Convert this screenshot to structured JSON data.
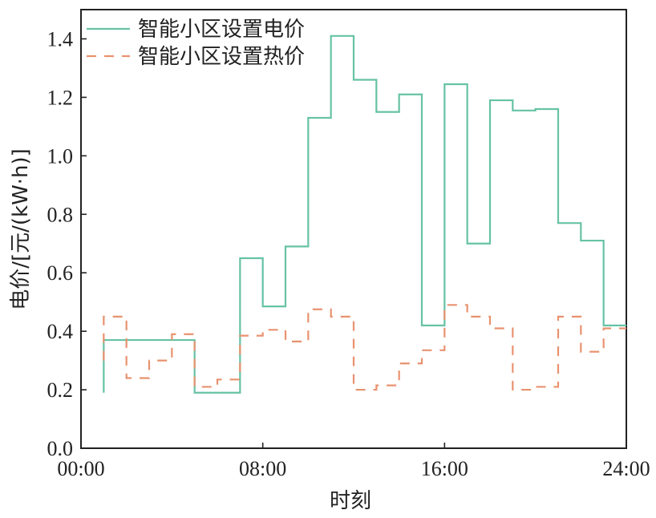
{
  "chart_data": {
    "type": "line",
    "step": "post",
    "title": "",
    "xlabel": "时刻",
    "ylabel": "电价/[元/(kW·h)]",
    "xlim": [
      0,
      24
    ],
    "ylim": [
      0,
      1.5
    ],
    "xticks": [
      {
        "value": 0,
        "label": "00:00"
      },
      {
        "value": 8,
        "label": "08:00"
      },
      {
        "value": 16,
        "label": "16:00"
      },
      {
        "value": 24,
        "label": "24:00"
      }
    ],
    "yticks": [
      {
        "value": 0,
        "label": "0.0"
      },
      {
        "value": 0.2,
        "label": "0.2"
      },
      {
        "value": 0.4,
        "label": "0.4"
      },
      {
        "value": 0.6,
        "label": "0.6"
      },
      {
        "value": 0.8,
        "label": "0.8"
      },
      {
        "value": 1.0,
        "label": "1.0"
      },
      {
        "value": 1.2,
        "label": "1.2"
      },
      {
        "value": 1.4,
        "label": "1.4"
      }
    ],
    "x": [
      1,
      2,
      3,
      4,
      5,
      6,
      7,
      8,
      9,
      10,
      11,
      12,
      13,
      14,
      15,
      16,
      17,
      18,
      19,
      20,
      21,
      22,
      23,
      24
    ],
    "legend_position": "top-left",
    "grid": false,
    "series": [
      {
        "name": "智能小区设置电价",
        "color": "#66c2a5",
        "dash": "solid",
        "values": [
          0.19,
          0.37,
          0.37,
          0.37,
          0.37,
          0.19,
          0.19,
          0.65,
          0.485,
          0.69,
          1.13,
          1.41,
          1.26,
          1.15,
          1.21,
          0.42,
          1.245,
          0.7,
          1.19,
          1.155,
          1.16,
          0.77,
          0.71,
          0.42
        ]
      },
      {
        "name": "智能小区设置热价",
        "color": "#e8926f",
        "dash": "dashed",
        "values": [
          0.3,
          0.45,
          0.24,
          0.3,
          0.39,
          0.21,
          0.235,
          0.385,
          0.405,
          0.365,
          0.475,
          0.45,
          0.2,
          0.215,
          0.29,
          0.335,
          0.49,
          0.45,
          0.41,
          0.2,
          0.21,
          0.45,
          0.33,
          0.41
        ]
      }
    ]
  }
}
